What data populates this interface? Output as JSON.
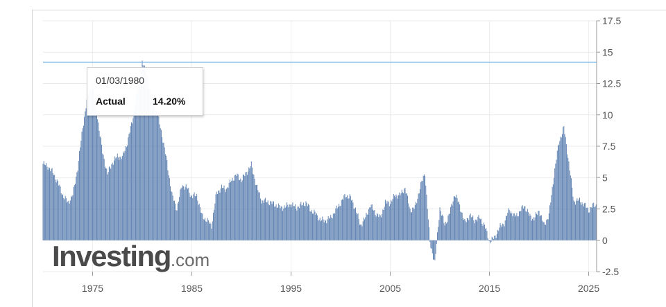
{
  "chart_data": {
    "type": "bar",
    "title": "",
    "xlabel": "",
    "ylabel": "",
    "ylim": [
      -2.5,
      17.5
    ],
    "xlim": [
      1970.0,
      2025.8
    ],
    "y_ticks": [
      "17.5",
      "15",
      "12.5",
      "10",
      "7.5",
      "5",
      "2.5",
      "0",
      "-2.5"
    ],
    "x_ticks": [
      "1975",
      "1985",
      "1995",
      "2005",
      "2015",
      "2025"
    ],
    "grid": true,
    "legend": "none",
    "series": [
      {
        "name": "Actual",
        "color": "#5b7fb0",
        "points": [
          [
            1970.0,
            6.1
          ],
          [
            1970.5,
            5.9
          ],
          [
            1971.0,
            5.4
          ],
          [
            1971.5,
            4.6
          ],
          [
            1972.0,
            3.6
          ],
          [
            1972.5,
            3.0
          ],
          [
            1973.0,
            3.6
          ],
          [
            1973.5,
            5.8
          ],
          [
            1974.0,
            9.0
          ],
          [
            1974.5,
            11.5
          ],
          [
            1975.0,
            12.3
          ],
          [
            1975.5,
            9.8
          ],
          [
            1976.0,
            7.0
          ],
          [
            1976.5,
            5.3
          ],
          [
            1977.0,
            6.2
          ],
          [
            1977.5,
            6.7
          ],
          [
            1978.0,
            6.6
          ],
          [
            1978.5,
            7.8
          ],
          [
            1979.0,
            9.5
          ],
          [
            1979.5,
            11.8
          ],
          [
            1980.0,
            14.2
          ],
          [
            1980.5,
            13.1
          ],
          [
            1981.0,
            11.0
          ],
          [
            1981.5,
            10.2
          ],
          [
            1982.0,
            8.4
          ],
          [
            1982.5,
            6.2
          ],
          [
            1983.0,
            3.6
          ],
          [
            1983.5,
            2.5
          ],
          [
            1984.0,
            4.4
          ],
          [
            1984.5,
            4.2
          ],
          [
            1985.0,
            3.5
          ],
          [
            1985.5,
            3.6
          ],
          [
            1986.0,
            2.0
          ],
          [
            1986.5,
            1.6
          ],
          [
            1987.0,
            1.2
          ],
          [
            1987.5,
            3.8
          ],
          [
            1988.0,
            4.2
          ],
          [
            1988.5,
            4.1
          ],
          [
            1989.0,
            4.8
          ],
          [
            1989.5,
            5.2
          ],
          [
            1990.0,
            4.8
          ],
          [
            1990.5,
            5.4
          ],
          [
            1991.0,
            6.0
          ],
          [
            1991.5,
            4.4
          ],
          [
            1992.0,
            3.2
          ],
          [
            1992.5,
            3.1
          ],
          [
            1993.0,
            3.0
          ],
          [
            1993.5,
            2.8
          ],
          [
            1994.0,
            2.6
          ],
          [
            1994.5,
            2.7
          ],
          [
            1995.0,
            2.9
          ],
          [
            1995.5,
            2.6
          ],
          [
            1996.0,
            2.8
          ],
          [
            1996.5,
            3.0
          ],
          [
            1997.0,
            2.4
          ],
          [
            1997.5,
            2.1
          ],
          [
            1998.0,
            1.6
          ],
          [
            1998.5,
            1.6
          ],
          [
            1999.0,
            1.8
          ],
          [
            1999.5,
            2.4
          ],
          [
            2000.0,
            3.0
          ],
          [
            2000.5,
            3.6
          ],
          [
            2001.0,
            3.4
          ],
          [
            2001.5,
            2.5
          ],
          [
            2002.0,
            1.2
          ],
          [
            2002.5,
            1.8
          ],
          [
            2003.0,
            2.8
          ],
          [
            2003.5,
            2.2
          ],
          [
            2004.0,
            1.8
          ],
          [
            2004.5,
            3.0
          ],
          [
            2005.0,
            3.0
          ],
          [
            2005.5,
            3.6
          ],
          [
            2006.0,
            3.6
          ],
          [
            2006.5,
            4.2
          ],
          [
            2007.0,
            2.4
          ],
          [
            2007.5,
            2.6
          ],
          [
            2008.0,
            4.2
          ],
          [
            2008.5,
            5.4
          ],
          [
            2009.0,
            -0.2
          ],
          [
            2009.5,
            -1.8
          ],
          [
            2010.0,
            2.6
          ],
          [
            2010.5,
            1.2
          ],
          [
            2011.0,
            2.2
          ],
          [
            2011.5,
            3.7
          ],
          [
            2012.0,
            2.8
          ],
          [
            2012.5,
            1.4
          ],
          [
            2013.0,
            2.0
          ],
          [
            2013.5,
            1.6
          ],
          [
            2014.0,
            1.8
          ],
          [
            2014.5,
            1.2
          ],
          [
            2015.0,
            -0.1
          ],
          [
            2015.5,
            0.2
          ],
          [
            2016.0,
            1.0
          ],
          [
            2016.5,
            1.4
          ],
          [
            2017.0,
            2.5
          ],
          [
            2017.5,
            1.9
          ],
          [
            2018.0,
            2.2
          ],
          [
            2018.5,
            2.8
          ],
          [
            2019.0,
            2.0
          ],
          [
            2019.5,
            1.7
          ],
          [
            2020.0,
            2.4
          ],
          [
            2020.5,
            1.2
          ],
          [
            2021.0,
            2.0
          ],
          [
            2021.5,
            5.2
          ],
          [
            2022.0,
            7.8
          ],
          [
            2022.5,
            9.0
          ],
          [
            2023.0,
            6.2
          ],
          [
            2023.5,
            3.1
          ],
          [
            2024.0,
            3.2
          ],
          [
            2024.5,
            2.9
          ],
          [
            2025.0,
            2.4
          ],
          [
            2025.5,
            2.8
          ]
        ]
      }
    ],
    "reference_line": {
      "value": 14.2,
      "color": "#7ab8e8"
    }
  },
  "tooltip": {
    "date": "01/03/1980",
    "label": "Actual",
    "value": "14.20%"
  },
  "watermark": {
    "brand": "Investing",
    "tld": ".com"
  }
}
